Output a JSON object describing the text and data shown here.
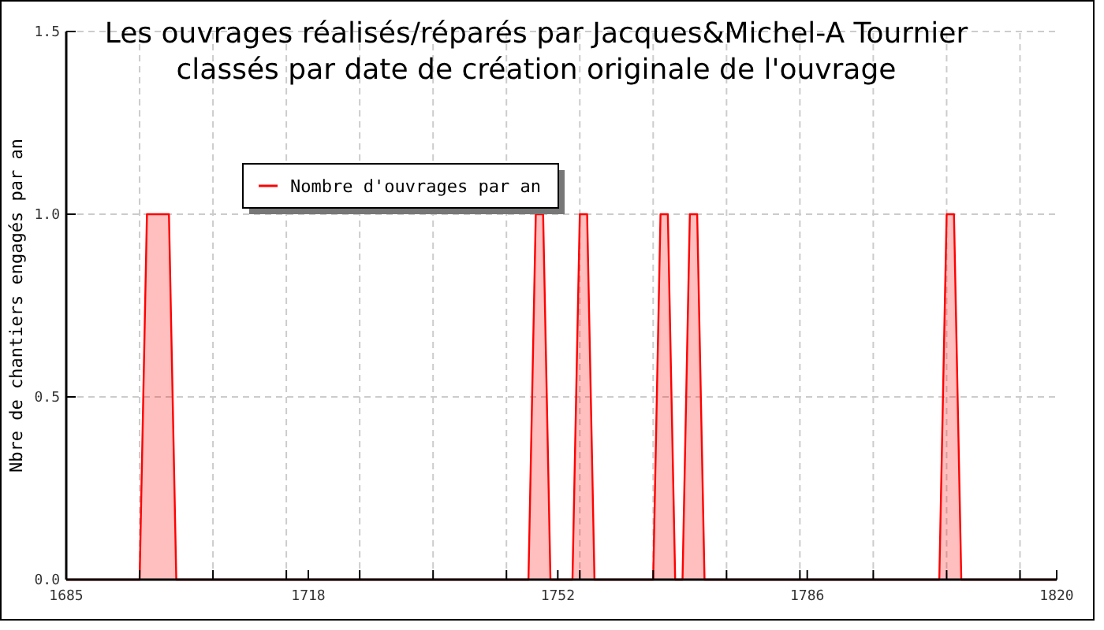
{
  "chart_data": {
    "type": "area",
    "title": "Les ouvrages réalisés/réparés par Jacques&Michel-A Tournier\nclassés par date de création originale de l'ouvrage",
    "ylabel": "Nbre de chantiers engagés par an",
    "x": [
      1685,
      1695,
      1696,
      1699,
      1700,
      1748,
      1749,
      1750,
      1751,
      1754,
      1755,
      1756,
      1757,
      1765,
      1766,
      1767,
      1768,
      1769,
      1770,
      1771,
      1772,
      1804,
      1805,
      1806,
      1807,
      1820
    ],
    "series": [
      {
        "name": "Nombre d'ouvrages par an",
        "color": "#ff0000",
        "values": [
          0,
          0,
          1,
          1,
          0,
          0,
          1,
          1,
          0,
          0,
          1,
          1,
          0,
          0,
          1,
          1,
          0,
          0,
          1,
          1,
          0,
          0,
          1,
          1,
          0,
          0
        ]
      }
    ],
    "xlim": [
      1685,
      1820
    ],
    "xticks": [
      1685,
      {
        "value": 1695,
        "label": null
      },
      {
        "value": 1705,
        "label": null
      },
      {
        "value": 1715,
        "label": null
      },
      1718,
      {
        "value": 1725,
        "label": null
      },
      {
        "value": 1735,
        "label": null
      },
      {
        "value": 1745,
        "label": null
      },
      1752,
      {
        "value": 1755,
        "label": null
      },
      {
        "value": 1765,
        "label": null
      },
      {
        "value": 1775,
        "label": null
      },
      {
        "value": 1785,
        "label": null
      },
      1786,
      {
        "value": 1795,
        "label": null
      },
      {
        "value": 1805,
        "label": null
      },
      {
        "value": 1815,
        "label": null
      },
      1820
    ],
    "ylim": [
      0,
      1.5
    ],
    "yticks": [
      {
        "value": 0,
        "label": "0.0"
      },
      {
        "value": 0.5,
        "label": "0.5"
      },
      {
        "value": 1,
        "label": "1.0"
      },
      {
        "value": 1.5,
        "label": "1.5"
      }
    ],
    "grid": true,
    "legend": "top left"
  }
}
